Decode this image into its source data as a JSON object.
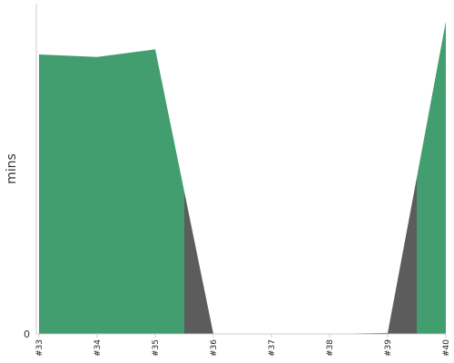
{
  "chart_data": {
    "type": "area",
    "categories": [
      "#33",
      "#34",
      "#35",
      "#36",
      "#37",
      "#38",
      "#39",
      "#40"
    ],
    "series": [
      {
        "color": "#429e6e",
        "values": [
          55.0,
          54.5,
          56.0,
          0,
          0,
          0,
          0,
          61.5
        ]
      },
      {
        "color": "#5c5c5c",
        "values": [
          0,
          0,
          0,
          0,
          0,
          0,
          0.2,
          0
        ]
      }
    ],
    "ylabel": "mins",
    "yticks": [
      "0"
    ],
    "ylim": [
      0,
      65
    ],
    "grid": false
  }
}
